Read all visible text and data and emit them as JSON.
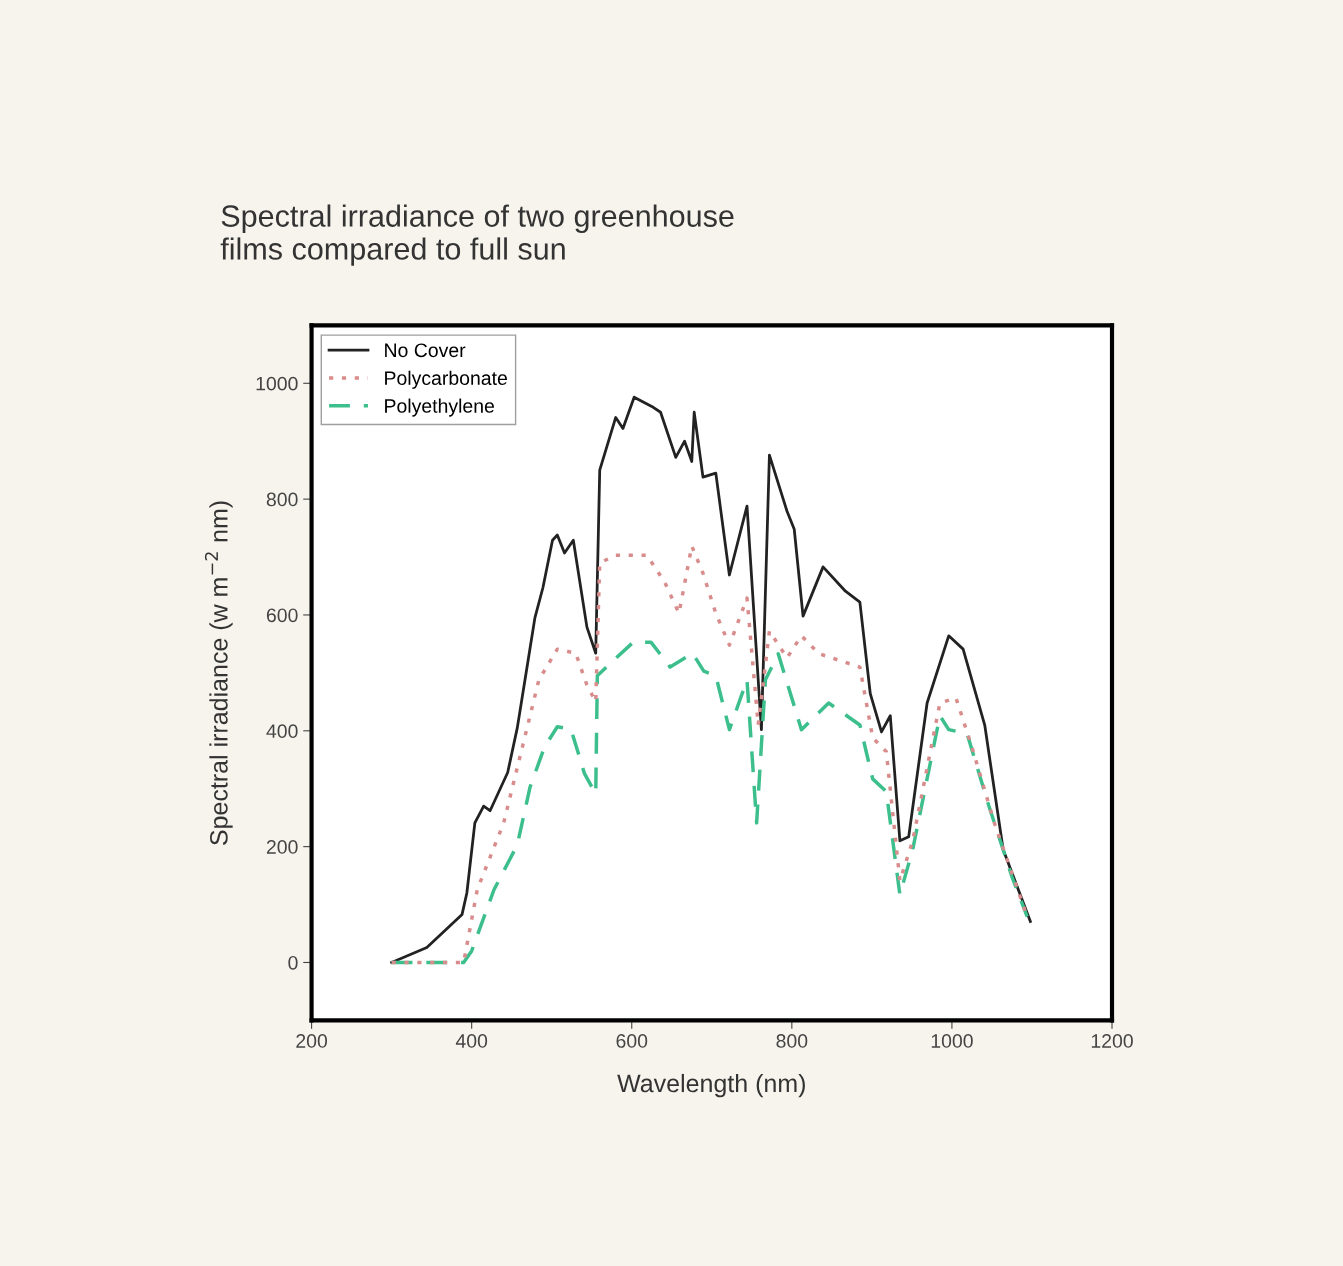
{
  "chart_data": {
    "type": "line",
    "title": "Spectral irradiance of two greenhouse\nfilms compared to full sun",
    "xlabel": "Wavelength (nm)",
    "ylabel": "Spectral irradiance (w m$^{−2}$ nm)",
    "xlim": [
      200,
      1200
    ],
    "xticks": [
      200,
      400,
      600,
      800,
      1000,
      1200
    ],
    "ylim": [
      -100,
      1100
    ],
    "yticks": [
      0,
      200,
      400,
      600,
      800,
      1000
    ],
    "grid": false,
    "legend": "top left",
    "series": [
      {
        "name": "No Cover",
        "color": "#222222",
        "line_style": "solid",
        "x": [
          300,
          344,
          388,
          394,
          404,
          415,
          423,
          445,
          457,
          470,
          479,
          489,
          501,
          507,
          516,
          527,
          544,
          555,
          560,
          580,
          589,
          603,
          625,
          636,
          655,
          666,
          675,
          678,
          689,
          705,
          722,
          744,
          762,
          772,
          794,
          803,
          814,
          839,
          867,
          885,
          898,
          912,
          923,
          935,
          946,
          969,
          996,
          1014,
          1041,
          1064,
          1098
        ],
        "values": [
          0,
          26,
          83,
          120,
          241,
          270,
          262,
          328,
          405,
          517,
          595,
          647,
          729,
          738,
          707,
          729,
          579,
          534,
          850,
          941,
          922,
          976,
          960,
          950,
          872,
          900,
          865,
          950,
          838,
          845,
          669,
          788,
          402,
          876,
          779,
          748,
          598,
          683,
          641,
          622,
          464,
          398,
          426,
          210,
          217,
          448,
          564,
          541,
          410,
          195,
          71
        ]
      },
      {
        "name": "Polycarbonate",
        "color": "#d98c8c",
        "line_style": "dotted",
        "x": [
          300,
          390,
          407,
          440,
          484,
          507,
          530,
          544,
          555,
          560,
          580,
          619,
          641,
          659,
          675,
          689,
          705,
          722,
          744,
          758,
          772,
          794,
          812,
          834,
          885,
          901,
          918,
          935,
          951,
          985,
          1005,
          1025,
          1053,
          1094
        ],
        "values": [
          0,
          0,
          126,
          241,
          488,
          541,
          534,
          479,
          450,
          690,
          703,
          703,
          657,
          603,
          719,
          672,
          603,
          548,
          629,
          410,
          572,
          526,
          564,
          533,
          510,
          388,
          364,
          141,
          210,
          448,
          457,
          372,
          241,
          79
        ]
      },
      {
        "name": "Polyethylene",
        "color": "#3cbf8c",
        "line_style": "dashed",
        "x": [
          300,
          390,
          400,
          428,
          457,
          473,
          491,
          507,
          524,
          541,
          555,
          557,
          575,
          602,
          624,
          648,
          676,
          690,
          705,
          722,
          744,
          756,
          767,
          783,
          812,
          846,
          885,
          901,
          918,
          935,
          951,
          985,
          996,
          1019,
          1046,
          1075,
          1094
        ],
        "values": [
          0,
          0,
          20,
          126,
          203,
          303,
          372,
          407,
          403,
          326,
          291,
          495,
          519,
          553,
          553,
          510,
          534,
          503,
          495,
          402,
          488,
          241,
          488,
          533,
          402,
          448,
          410,
          317,
          295,
          117,
          195,
          426,
          402,
          395,
          271,
          148,
          79
        ]
      }
    ]
  }
}
